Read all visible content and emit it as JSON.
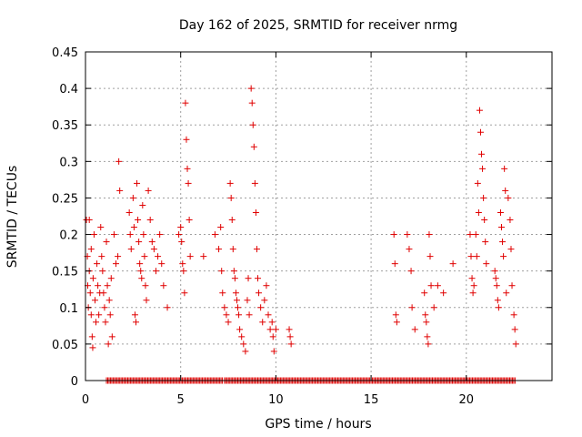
{
  "chart_data": {
    "type": "scatter",
    "title": "Day 162 of 2025, SRMTID for receiver nrmg",
    "xlabel": "GPS time / hours",
    "ylabel": "SRMTID / TECUs",
    "xlim": [
      0,
      24.5
    ],
    "ylim": [
      0,
      0.45
    ],
    "xticks": [
      0,
      5,
      10,
      15,
      20
    ],
    "yticks": [
      0,
      0.05,
      0.1,
      0.15,
      0.2,
      0.25,
      0.3,
      0.35,
      0.4,
      0.45
    ],
    "xtick_labels": [
      "0",
      "5",
      "10",
      "15",
      "20"
    ],
    "ytick_labels": [
      "0",
      "0.05",
      "0.1",
      "0.15",
      "0.2",
      "0.25",
      "0.3",
      "0.35",
      "0.4",
      "0.45"
    ],
    "grid": true,
    "marker": "plus",
    "color": "#e00000",
    "series": [
      {
        "name": "SRMTID",
        "points": [
          [
            0.05,
            0.22
          ],
          [
            0.1,
            0.17
          ],
          [
            0.12,
            0.13
          ],
          [
            0.15,
            0.1
          ],
          [
            0.2,
            0.22
          ],
          [
            0.2,
            0.15
          ],
          [
            0.25,
            0.12
          ],
          [
            0.3,
            0.18
          ],
          [
            0.3,
            0.09
          ],
          [
            0.35,
            0.06
          ],
          [
            0.38,
            0.045
          ],
          [
            0.4,
            0.14
          ],
          [
            0.45,
            0.2
          ],
          [
            0.5,
            0.11
          ],
          [
            0.55,
            0.08
          ],
          [
            0.6,
            0.16
          ],
          [
            0.65,
            0.13
          ],
          [
            0.7,
            0.09
          ],
          [
            0.75,
            0.12
          ],
          [
            0.8,
            0.21
          ],
          [
            0.85,
            0.17
          ],
          [
            0.9,
            0.15
          ],
          [
            0.95,
            0.12
          ],
          [
            1.0,
            0.1
          ],
          [
            1.05,
            0.08
          ],
          [
            1.1,
            0.19
          ],
          [
            1.15,
            0.13
          ],
          [
            1.2,
            0.05
          ],
          [
            1.25,
            0.11
          ],
          [
            1.3,
            0.09
          ],
          [
            1.35,
            0.14
          ],
          [
            1.4,
            0.06
          ],
          [
            1.5,
            0.2
          ],
          [
            1.6,
            0.16
          ],
          [
            1.7,
            0.17
          ],
          [
            1.75,
            0.3
          ],
          [
            1.8,
            0.26
          ],
          [
            2.3,
            0.23
          ],
          [
            2.35,
            0.2
          ],
          [
            2.4,
            0.18
          ],
          [
            2.5,
            0.25
          ],
          [
            2.55,
            0.21
          ],
          [
            2.6,
            0.09
          ],
          [
            2.65,
            0.08
          ],
          [
            2.7,
            0.27
          ],
          [
            2.75,
            0.22
          ],
          [
            2.8,
            0.19
          ],
          [
            2.85,
            0.16
          ],
          [
            2.9,
            0.15
          ],
          [
            2.95,
            0.14
          ],
          [
            3.0,
            0.24
          ],
          [
            3.05,
            0.2
          ],
          [
            3.1,
            0.17
          ],
          [
            3.15,
            0.13
          ],
          [
            3.2,
            0.11
          ],
          [
            3.3,
            0.26
          ],
          [
            3.4,
            0.22
          ],
          [
            3.5,
            0.19
          ],
          [
            3.6,
            0.18
          ],
          [
            3.7,
            0.15
          ],
          [
            3.8,
            0.17
          ],
          [
            3.9,
            0.2
          ],
          [
            4.0,
            0.16
          ],
          [
            4.1,
            0.13
          ],
          [
            4.3,
            0.1
          ],
          [
            4.9,
            0.2
          ],
          [
            5.0,
            0.21
          ],
          [
            5.05,
            0.19
          ],
          [
            5.1,
            0.16
          ],
          [
            5.15,
            0.15
          ],
          [
            5.2,
            0.12
          ],
          [
            5.25,
            0.38
          ],
          [
            5.3,
            0.33
          ],
          [
            5.35,
            0.29
          ],
          [
            5.4,
            0.27
          ],
          [
            5.45,
            0.22
          ],
          [
            5.5,
            0.17
          ],
          [
            6.2,
            0.17
          ],
          [
            6.8,
            0.2
          ],
          [
            7.0,
            0.18
          ],
          [
            7.1,
            0.21
          ],
          [
            7.15,
            0.15
          ],
          [
            7.2,
            0.12
          ],
          [
            7.3,
            0.1
          ],
          [
            7.4,
            0.09
          ],
          [
            7.5,
            0.08
          ],
          [
            7.6,
            0.27
          ],
          [
            7.65,
            0.25
          ],
          [
            7.7,
            0.22
          ],
          [
            7.75,
            0.18
          ],
          [
            7.8,
            0.15
          ],
          [
            7.85,
            0.14
          ],
          [
            7.9,
            0.12
          ],
          [
            7.95,
            0.11
          ],
          [
            8.0,
            0.1
          ],
          [
            8.05,
            0.09
          ],
          [
            8.1,
            0.07
          ],
          [
            8.2,
            0.06
          ],
          [
            8.3,
            0.05
          ],
          [
            8.4,
            0.04
          ],
          [
            8.5,
            0.11
          ],
          [
            8.55,
            0.14
          ],
          [
            8.6,
            0.09
          ],
          [
            8.7,
            0.4
          ],
          [
            8.75,
            0.38
          ],
          [
            8.8,
            0.35
          ],
          [
            8.85,
            0.32
          ],
          [
            8.9,
            0.27
          ],
          [
            8.95,
            0.23
          ],
          [
            9.0,
            0.18
          ],
          [
            9.05,
            0.14
          ],
          [
            9.1,
            0.12
          ],
          [
            9.2,
            0.1
          ],
          [
            9.3,
            0.08
          ],
          [
            9.4,
            0.11
          ],
          [
            9.5,
            0.13
          ],
          [
            9.6,
            0.09
          ],
          [
            9.7,
            0.07
          ],
          [
            9.8,
            0.08
          ],
          [
            9.85,
            0.06
          ],
          [
            9.9,
            0.04
          ],
          [
            10.0,
            0.07
          ],
          [
            10.7,
            0.07
          ],
          [
            10.75,
            0.06
          ],
          [
            10.8,
            0.05
          ],
          [
            16.2,
            0.2
          ],
          [
            16.25,
            0.16
          ],
          [
            16.3,
            0.09
          ],
          [
            16.35,
            0.08
          ],
          [
            16.9,
            0.2
          ],
          [
            17.0,
            0.18
          ],
          [
            17.1,
            0.15
          ],
          [
            17.15,
            0.1
          ],
          [
            17.3,
            0.07
          ],
          [
            17.8,
            0.12
          ],
          [
            17.85,
            0.09
          ],
          [
            17.9,
            0.08
          ],
          [
            17.95,
            0.06
          ],
          [
            18.0,
            0.05
          ],
          [
            18.05,
            0.2
          ],
          [
            18.1,
            0.17
          ],
          [
            18.15,
            0.13
          ],
          [
            18.3,
            0.1
          ],
          [
            18.5,
            0.13
          ],
          [
            18.8,
            0.12
          ],
          [
            19.3,
            0.16
          ],
          [
            20.2,
            0.2
          ],
          [
            20.25,
            0.17
          ],
          [
            20.3,
            0.14
          ],
          [
            20.35,
            0.12
          ],
          [
            20.4,
            0.13
          ],
          [
            20.5,
            0.2
          ],
          [
            20.55,
            0.17
          ],
          [
            20.6,
            0.27
          ],
          [
            20.65,
            0.23
          ],
          [
            20.7,
            0.37
          ],
          [
            20.75,
            0.34
          ],
          [
            20.8,
            0.31
          ],
          [
            20.85,
            0.29
          ],
          [
            20.9,
            0.25
          ],
          [
            20.95,
            0.22
          ],
          [
            21.0,
            0.19
          ],
          [
            21.05,
            0.16
          ],
          [
            21.5,
            0.15
          ],
          [
            21.55,
            0.14
          ],
          [
            21.6,
            0.13
          ],
          [
            21.65,
            0.11
          ],
          [
            21.7,
            0.1
          ],
          [
            21.8,
            0.23
          ],
          [
            21.85,
            0.21
          ],
          [
            21.9,
            0.19
          ],
          [
            21.95,
            0.17
          ],
          [
            22.0,
            0.29
          ],
          [
            22.05,
            0.26
          ],
          [
            22.1,
            0.12
          ],
          [
            22.2,
            0.25
          ],
          [
            22.3,
            0.22
          ],
          [
            22.35,
            0.18
          ],
          [
            22.4,
            0.13
          ],
          [
            22.5,
            0.09
          ],
          [
            22.55,
            0.07
          ],
          [
            22.6,
            0.05
          ]
        ]
      }
    ],
    "zero_band": {
      "segments": [
        [
          1.1,
          7.2
        ],
        [
          7.3,
          22.6
        ]
      ],
      "value": 0
    }
  }
}
